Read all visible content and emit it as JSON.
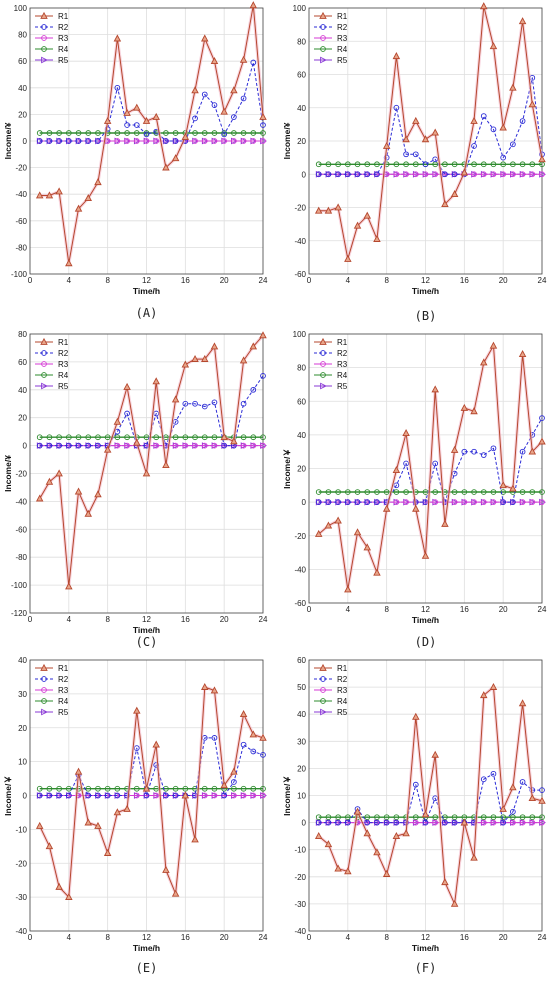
{
  "figure": {
    "colors": {
      "R1": "#b5472e",
      "R2": "#2b2bd6",
      "R3": "#d43ad4",
      "R4": "#2e8b2e",
      "R5": "#8a3ad6",
      "grid": "#dedede",
      "R1_shadow": "#f3b8c8"
    }
  },
  "chart_data": [
    {
      "type": "line",
      "panel_label": "(A)",
      "xlabel": "Time/h",
      "ylabel": "Income/¥",
      "xlim": [
        0,
        24
      ],
      "ylim": [
        -100,
        100
      ],
      "xticks": [
        0,
        4,
        8,
        12,
        16,
        20,
        24
      ],
      "yticks": [
        -100,
        -80,
        -60,
        -40,
        -20,
        0,
        20,
        40,
        60,
        80,
        100
      ],
      "grid": true,
      "legend": "top-left",
      "x": [
        1,
        2,
        3,
        4,
        5,
        6,
        7,
        8,
        9,
        10,
        11,
        12,
        13,
        14,
        15,
        16,
        17,
        18,
        19,
        20,
        21,
        22,
        23,
        24
      ],
      "series": [
        {
          "name": "R1",
          "values": [
            -41,
            -41,
            -38,
            -92,
            -51,
            -43,
            -31,
            15,
            77,
            21,
            25,
            15,
            18,
            -20,
            -13,
            3,
            38,
            77,
            60,
            22,
            38,
            61,
            102,
            18
          ]
        },
        {
          "name": "R2",
          "values": [
            0,
            0,
            0,
            0,
            0,
            0,
            0,
            9,
            40,
            12,
            12,
            5,
            7,
            0,
            0,
            0,
            17,
            35,
            27,
            5,
            18,
            32,
            59,
            12
          ]
        },
        {
          "name": "R3",
          "values": [
            0,
            0,
            0,
            0,
            0,
            0,
            0,
            0,
            0,
            0,
            0,
            0,
            0,
            0,
            0,
            0,
            0,
            0,
            0,
            0,
            0,
            0,
            0,
            0
          ]
        },
        {
          "name": "R4",
          "values": [
            6,
            6,
            6,
            6,
            6,
            6,
            6,
            6,
            6,
            6,
            6,
            6,
            6,
            6,
            6,
            6,
            6,
            6,
            6,
            6,
            6,
            6,
            6,
            6
          ]
        },
        {
          "name": "R5",
          "values": [
            0,
            0,
            0,
            0,
            0,
            0,
            0,
            0,
            0,
            0,
            0,
            0,
            0,
            0,
            0,
            0,
            0,
            0,
            0,
            0,
            0,
            0,
            0,
            0
          ]
        }
      ]
    },
    {
      "type": "line",
      "panel_label": "(B)",
      "xlabel": "Time/h",
      "ylabel": "Income/¥",
      "xlim": [
        0,
        24
      ],
      "ylim": [
        -60,
        100
      ],
      "xticks": [
        0,
        4,
        8,
        12,
        16,
        20,
        24
      ],
      "yticks": [
        -60,
        -40,
        -20,
        0,
        20,
        40,
        60,
        80,
        100
      ],
      "grid": true,
      "legend": "top-left",
      "x": [
        1,
        2,
        3,
        4,
        5,
        6,
        7,
        8,
        9,
        10,
        11,
        12,
        13,
        14,
        15,
        16,
        17,
        18,
        19,
        20,
        21,
        22,
        23,
        24
      ],
      "series": [
        {
          "name": "R1",
          "values": [
            -22,
            -22,
            -20,
            -51,
            -31,
            -25,
            -39,
            17,
            71,
            21,
            32,
            21,
            25,
            -18,
            -12,
            1,
            32,
            101,
            77,
            28,
            52,
            92,
            42,
            9
          ]
        },
        {
          "name": "R2",
          "values": [
            0,
            0,
            0,
            0,
            0,
            0,
            0,
            10,
            40,
            12,
            12,
            6,
            9,
            0,
            0,
            0,
            17,
            35,
            27,
            10,
            18,
            32,
            58,
            12
          ]
        },
        {
          "name": "R3",
          "values": [
            0,
            0,
            0,
            0,
            0,
            0,
            0,
            0,
            0,
            0,
            0,
            0,
            0,
            0,
            0,
            0,
            0,
            0,
            0,
            0,
            0,
            0,
            0,
            0
          ]
        },
        {
          "name": "R4",
          "values": [
            6,
            6,
            6,
            6,
            6,
            6,
            6,
            6,
            6,
            6,
            6,
            6,
            6,
            6,
            6,
            6,
            6,
            6,
            6,
            6,
            6,
            6,
            6,
            6
          ]
        },
        {
          "name": "R5",
          "values": [
            0,
            0,
            0,
            0,
            0,
            0,
            0,
            0,
            0,
            0,
            0,
            0,
            0,
            0,
            0,
            0,
            0,
            0,
            0,
            0,
            0,
            0,
            0,
            0
          ]
        }
      ]
    },
    {
      "type": "line",
      "panel_label": "(C)",
      "xlabel": "Time/h",
      "ylabel": "Income/¥",
      "xlim": [
        0,
        24
      ],
      "ylim": [
        -120,
        80
      ],
      "xticks": [
        0,
        4,
        8,
        12,
        16,
        20,
        24
      ],
      "yticks": [
        -120,
        -100,
        -80,
        -60,
        -40,
        -20,
        0,
        20,
        40,
        60,
        80
      ],
      "grid": true,
      "legend": "top-left",
      "x": [
        1,
        2,
        3,
        4,
        5,
        6,
        7,
        8,
        9,
        10,
        11,
        12,
        13,
        14,
        15,
        16,
        17,
        18,
        19,
        20,
        21,
        22,
        23,
        24
      ],
      "series": [
        {
          "name": "R1",
          "values": [
            -38,
            -26,
            -20,
            -101,
            -33,
            -49,
            -35,
            -3,
            17,
            42,
            2,
            -20,
            46,
            -14,
            33,
            58,
            62,
            62,
            71,
            6,
            3,
            61,
            71,
            79
          ]
        },
        {
          "name": "R2",
          "values": [
            0,
            0,
            0,
            0,
            0,
            0,
            0,
            0,
            10,
            23,
            0,
            0,
            23,
            0,
            17,
            30,
            30,
            28,
            31,
            0,
            0,
            30,
            40,
            50
          ]
        },
        {
          "name": "R3",
          "values": [
            0,
            0,
            0,
            0,
            0,
            0,
            0,
            0,
            0,
            0,
            0,
            0,
            0,
            0,
            0,
            0,
            0,
            0,
            0,
            0,
            0,
            0,
            0,
            0
          ]
        },
        {
          "name": "R4",
          "values": [
            6,
            6,
            6,
            6,
            6,
            6,
            6,
            6,
            6,
            6,
            6,
            6,
            6,
            6,
            6,
            6,
            6,
            6,
            6,
            6,
            6,
            6,
            6,
            6
          ]
        },
        {
          "name": "R5",
          "values": [
            0,
            0,
            0,
            0,
            0,
            0,
            0,
            0,
            0,
            0,
            0,
            0,
            0,
            0,
            0,
            0,
            0,
            0,
            0,
            0,
            0,
            0,
            0,
            0
          ]
        }
      ]
    },
    {
      "type": "line",
      "panel_label": "(D)",
      "xlabel": "Time/h",
      "ylabel": "Income/￥",
      "xlim": [
        0,
        24
      ],
      "ylim": [
        -60,
        100
      ],
      "xticks": [
        0,
        4,
        8,
        12,
        16,
        20,
        24
      ],
      "yticks": [
        -60,
        -40,
        -20,
        0,
        20,
        40,
        60,
        80,
        100
      ],
      "grid": true,
      "legend": "top-left",
      "x": [
        1,
        2,
        3,
        4,
        5,
        6,
        7,
        8,
        9,
        10,
        11,
        12,
        13,
        14,
        15,
        16,
        17,
        18,
        19,
        20,
        21,
        22,
        23,
        24
      ],
      "series": [
        {
          "name": "R1",
          "values": [
            -19,
            -14,
            -11,
            -52,
            -18,
            -27,
            -42,
            -4,
            19,
            41,
            -4,
            -32,
            67,
            -13,
            31,
            56,
            54,
            83,
            93,
            10,
            8,
            88,
            30,
            36
          ]
        },
        {
          "name": "R2",
          "values": [
            0,
            0,
            0,
            0,
            0,
            0,
            0,
            0,
            10,
            23,
            0,
            0,
            23,
            0,
            17,
            30,
            30,
            28,
            32,
            0,
            0,
            30,
            40,
            50
          ]
        },
        {
          "name": "R3",
          "values": [
            0,
            0,
            0,
            0,
            0,
            0,
            0,
            0,
            0,
            0,
            0,
            0,
            0,
            0,
            0,
            0,
            0,
            0,
            0,
            0,
            0,
            0,
            0,
            0
          ]
        },
        {
          "name": "R4",
          "values": [
            6,
            6,
            6,
            6,
            6,
            6,
            6,
            6,
            6,
            6,
            6,
            6,
            6,
            6,
            6,
            6,
            6,
            6,
            6,
            6,
            6,
            6,
            6,
            6
          ]
        },
        {
          "name": "R5",
          "values": [
            0,
            0,
            0,
            0,
            0,
            0,
            0,
            0,
            0,
            0,
            0,
            0,
            0,
            0,
            0,
            0,
            0,
            0,
            0,
            0,
            0,
            0,
            0,
            0
          ]
        }
      ]
    },
    {
      "type": "line",
      "panel_label": "(E)",
      "xlabel": "Time/h",
      "ylabel": "Income/￥",
      "xlim": [
        0,
        24
      ],
      "ylim": [
        -40,
        40
      ],
      "xticks": [
        0,
        4,
        8,
        12,
        16,
        20,
        24
      ],
      "yticks": [
        -40,
        -30,
        -20,
        -10,
        0,
        10,
        20,
        30,
        40
      ],
      "grid": true,
      "legend": "top-left",
      "x": [
        1,
        2,
        3,
        4,
        5,
        6,
        7,
        8,
        9,
        10,
        11,
        12,
        13,
        14,
        15,
        16,
        17,
        18,
        19,
        20,
        21,
        22,
        23,
        24
      ],
      "series": [
        {
          "name": "R1",
          "values": [
            -9,
            -15,
            -27,
            -30,
            7,
            -8,
            -9,
            -17,
            -5,
            -4,
            25,
            2,
            15,
            -22,
            -29,
            0,
            -13,
            32,
            31,
            3,
            7,
            24,
            18,
            17
          ]
        },
        {
          "name": "R2",
          "values": [
            0,
            0,
            0,
            0,
            6,
            0,
            0,
            0,
            0,
            0,
            14,
            0,
            9,
            0,
            0,
            0,
            0,
            17,
            17,
            0,
            4,
            15,
            13,
            12
          ]
        },
        {
          "name": "R3",
          "values": [
            0,
            0,
            0,
            0,
            0,
            0,
            0,
            0,
            0,
            0,
            0,
            0,
            0,
            0,
            0,
            0,
            0,
            0,
            0,
            0,
            0,
            0,
            0,
            0
          ]
        },
        {
          "name": "R4",
          "values": [
            2,
            2,
            2,
            2,
            2,
            2,
            2,
            2,
            2,
            2,
            2,
            2,
            2,
            2,
            2,
            2,
            2,
            2,
            2,
            2,
            2,
            2,
            2,
            2
          ]
        },
        {
          "name": "R5",
          "values": [
            0,
            0,
            0,
            0,
            0,
            0,
            0,
            0,
            0,
            0,
            0,
            0,
            0,
            0,
            0,
            0,
            0,
            0,
            0,
            0,
            0,
            0,
            0,
            0
          ]
        }
      ]
    },
    {
      "type": "line",
      "panel_label": "(F)",
      "xlabel": "Time/h",
      "ylabel": "Income/￥",
      "xlim": [
        0,
        24
      ],
      "ylim": [
        -40,
        60
      ],
      "xticks": [
        0,
        4,
        8,
        12,
        16,
        20,
        24
      ],
      "yticks": [
        -40,
        -30,
        -20,
        -10,
        0,
        10,
        20,
        30,
        40,
        50,
        60
      ],
      "grid": true,
      "legend": "top-left",
      "x": [
        1,
        2,
        3,
        4,
        5,
        6,
        7,
        8,
        9,
        10,
        11,
        12,
        13,
        14,
        15,
        16,
        17,
        18,
        19,
        20,
        21,
        22,
        23,
        24
      ],
      "series": [
        {
          "name": "R1",
          "values": [
            -5,
            -8,
            -17,
            -18,
            4,
            -4,
            -11,
            -19,
            -5,
            -4,
            39,
            3,
            25,
            -22,
            -30,
            0,
            -13,
            47,
            50,
            5,
            13,
            44,
            9,
            8
          ]
        },
        {
          "name": "R2",
          "values": [
            0,
            0,
            0,
            0,
            5,
            0,
            0,
            0,
            0,
            0,
            14,
            0,
            9,
            0,
            0,
            0,
            0,
            16,
            18,
            0,
            4,
            15,
            12,
            12
          ]
        },
        {
          "name": "R3",
          "values": [
            0,
            0,
            0,
            0,
            0,
            0,
            0,
            0,
            0,
            0,
            0,
            0,
            0,
            0,
            0,
            0,
            0,
            0,
            0,
            0,
            0,
            0,
            0,
            0
          ]
        },
        {
          "name": "R4",
          "values": [
            2,
            2,
            2,
            2,
            2,
            2,
            2,
            2,
            2,
            2,
            2,
            2,
            2,
            2,
            2,
            2,
            2,
            2,
            2,
            2,
            2,
            2,
            2,
            2
          ]
        },
        {
          "name": "R5",
          "values": [
            0,
            0,
            0,
            0,
            0,
            0,
            0,
            0,
            0,
            0,
            0,
            0,
            0,
            0,
            0,
            0,
            0,
            0,
            0,
            0,
            0,
            0,
            0,
            0
          ]
        }
      ]
    }
  ]
}
